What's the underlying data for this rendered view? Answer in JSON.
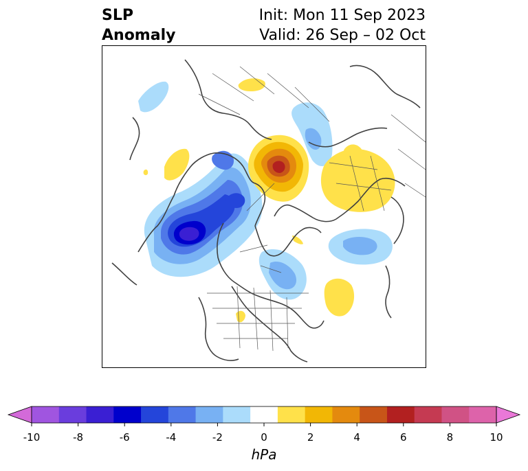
{
  "header": {
    "variable_line1": "SLP",
    "variable_line2": "Anomaly",
    "init_text": "Init: Mon 11 Sep 2023",
    "valid_text": "Valid: 26 Sep – 02 Oct"
  },
  "colorbar": {
    "units": "hPa",
    "tick_labels": [
      "-10",
      "-8",
      "-6",
      "-4",
      "-2",
      "0",
      "2",
      "4",
      "6",
      "8",
      "10"
    ],
    "colors": [
      "#d36ad9",
      "#a055e0",
      "#6a3ddd",
      "#3a1fd3",
      "#0000cc",
      "#2445da",
      "#4f78e8",
      "#78b1f3",
      "#abdcfb",
      "#ffffff",
      "#ffe14a",
      "#f2b705",
      "#e48a0e",
      "#c85518",
      "#b22020",
      "#c53a52",
      "#d05285",
      "#dd63aa",
      "#ea78d8"
    ]
  },
  "map": {
    "projection": "north polar stereographic",
    "features": [
      "coastlines",
      "country borders",
      "US state boundaries"
    ]
  }
}
